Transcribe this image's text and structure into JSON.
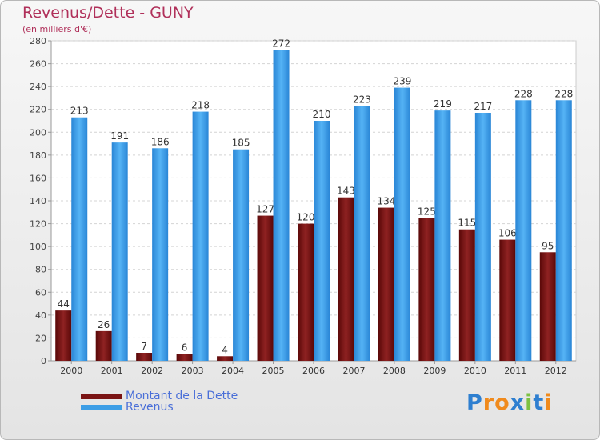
{
  "chart_data": {
    "type": "bar",
    "title": "Revenus/Dette - GUNY",
    "subtitle": "(en milliers d'€)",
    "categories": [
      "2000",
      "2001",
      "2002",
      "2003",
      "2004",
      "2005",
      "2006",
      "2007",
      "2008",
      "2009",
      "2010",
      "2011",
      "2012"
    ],
    "series": [
      {
        "name": "Montant de la Dette",
        "color": "#7a1414",
        "values": [
          44,
          26,
          7,
          6,
          4,
          127,
          120,
          143,
          134,
          125,
          115,
          106,
          95
        ]
      },
      {
        "name": "Revenus",
        "color": "#3d9ee6",
        "values": [
          213,
          191,
          186,
          218,
          185,
          272,
          210,
          223,
          239,
          219,
          217,
          228,
          228
        ]
      }
    ],
    "ylim": [
      0,
      280
    ],
    "yticks": [
      0,
      20,
      40,
      60,
      80,
      100,
      120,
      140,
      160,
      180,
      200,
      220,
      240,
      260,
      280
    ],
    "grid": true,
    "legend_position": "bottom-left",
    "xlabel": "",
    "ylabel": ""
  },
  "logo": {
    "letters": [
      "P",
      "r",
      "o",
      "x",
      "i",
      "t",
      "i"
    ],
    "colors": [
      "#2e7fd0",
      "#f08a1c",
      "#f08a1c",
      "#2e7fd0",
      "#7cc142",
      "#2e7fd0",
      "#f08a1c"
    ]
  }
}
